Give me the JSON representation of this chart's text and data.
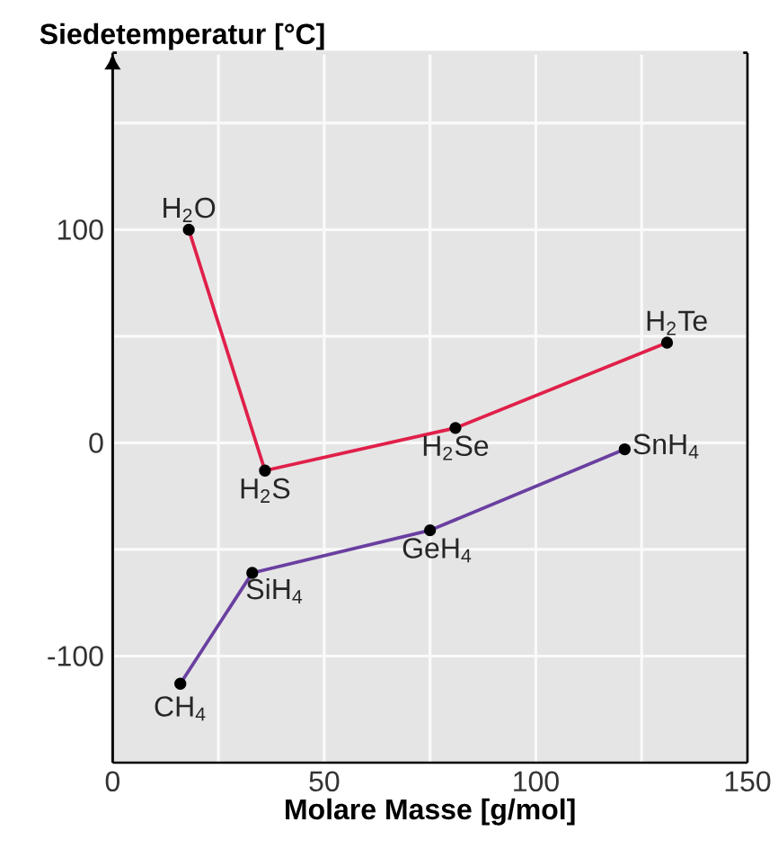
{
  "chart_data": {
    "type": "line",
    "xlabel": "Molare Masse [g/mol]",
    "ylabel": "Siedetemperatur [°C]",
    "xlim": [
      0,
      150
    ],
    "ylim": [
      -150,
      183
    ],
    "xticks": [
      0,
      {
        "value": 25,
        "label": null
      },
      50,
      {
        "value": 75,
        "label": null
      },
      100,
      {
        "value": 125,
        "label": null
      },
      150
    ],
    "yticks": [
      -100,
      {
        "value": -50,
        "label": null
      },
      0,
      {
        "value": 50,
        "label": null
      },
      100,
      {
        "value": 150,
        "label": null
      }
    ],
    "grid": true,
    "marker": "circle",
    "line_style": "solid",
    "series": [
      {
        "color": "#e0204a",
        "x": [
          18,
          36,
          81,
          131
        ],
        "values": [
          100,
          -13,
          7,
          47
        ]
      },
      {
        "color": "#6a3fa0",
        "x": [
          16,
          33,
          75,
          121
        ],
        "values": [
          -113,
          -61,
          -41,
          -3
        ]
      }
    ],
    "annotations": [
      {
        "text": "H$_{2}$O",
        "x": 18,
        "y": 100
      },
      {
        "text": "H$_{2}$S",
        "x": 36,
        "y": -13
      },
      {
        "text": "H$_{2}$Se",
        "x": 81,
        "y": 7
      },
      {
        "text": "H$_{2}$Te",
        "x": 131,
        "y": 47
      },
      {
        "text": "CH$_{4}$",
        "x": 16,
        "y": -113
      },
      {
        "text": "SiH$_{4}$",
        "x": 33,
        "y": -61
      },
      {
        "text": "GeH$_{4}$",
        "x": 75,
        "y": -41
      },
      {
        "text": "SnH$_{4}$",
        "x": 121,
        "y": -3
      }
    ]
  }
}
